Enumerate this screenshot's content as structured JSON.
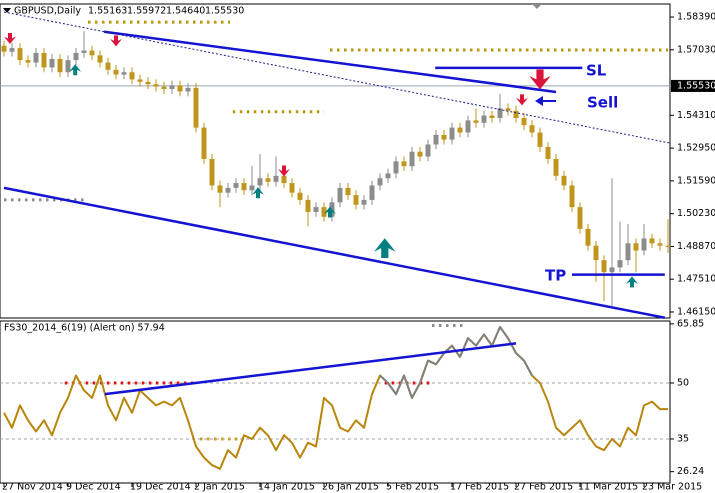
{
  "chart_data": [
    {
      "type": "candlestick",
      "header": {
        "symbol": "GBPUSD,Daily",
        "quote": [
          {
            "value": 1.55163,
            "label": "1.55163"
          },
          {
            "value": 1.55972,
            "label": "1.55972"
          },
          {
            "value": 1.5464,
            "label": "1.54640"
          },
          {
            "value": 1.5553,
            "label": "1.55530"
          }
        ]
      },
      "up_color": "#8c8c8c",
      "down_color": "#c0961c",
      "ylim": [
        1.459,
        1.5893
      ],
      "yticks": [
        {
          "value": 1.5839,
          "label": "1.58390"
        },
        {
          "value": 1.5703,
          "label": "1.57030"
        },
        {
          "value": 1.5431,
          "label": "1.54310"
        },
        {
          "value": 1.5295,
          "label": "1.52950"
        },
        {
          "value": 1.5159,
          "label": "1.51590"
        },
        {
          "value": 1.5023,
          "label": "1.50230"
        },
        {
          "value": 1.4887,
          "label": "1.48870"
        },
        {
          "value": 1.4751,
          "label": "1.47510"
        },
        {
          "value": 1.4615,
          "label": "1.46150"
        }
      ],
      "grid": false,
      "candles": [
        [
          1.572,
          1.574,
          1.5675,
          1.5695
        ],
        [
          1.5695,
          1.573,
          1.5675,
          1.571
        ],
        [
          1.571,
          1.573,
          1.564,
          1.566
        ],
        [
          1.566,
          1.568,
          1.563,
          1.565
        ],
        [
          1.565,
          1.571,
          1.563,
          1.569
        ],
        [
          1.569,
          1.571,
          1.561,
          1.563
        ],
        [
          1.563,
          1.5685,
          1.561,
          1.5665
        ],
        [
          1.5665,
          1.5685,
          1.559,
          1.561
        ],
        [
          1.561,
          1.568,
          1.559,
          1.566
        ],
        [
          1.566,
          1.571,
          1.564,
          1.569
        ],
        [
          1.569,
          1.578,
          1.567,
          1.57
        ],
        [
          1.57,
          1.572,
          1.566,
          1.568
        ],
        [
          1.568,
          1.57,
          1.563,
          1.565
        ],
        [
          1.565,
          1.567,
          1.56,
          1.562
        ],
        [
          1.562,
          1.564,
          1.558,
          1.56
        ],
        [
          1.56,
          1.563,
          1.558,
          1.561
        ],
        [
          1.561,
          1.563,
          1.556,
          1.558
        ],
        [
          1.558,
          1.56,
          1.555,
          1.557
        ],
        [
          1.557,
          1.559,
          1.554,
          1.556
        ],
        [
          1.556,
          1.558,
          1.553,
          1.555
        ],
        [
          1.555,
          1.557,
          1.552,
          1.554
        ],
        [
          1.554,
          1.5575,
          1.552,
          1.5555
        ],
        [
          1.5555,
          1.5575,
          1.551,
          1.553
        ],
        [
          1.553,
          1.5565,
          1.551,
          1.5545
        ],
        [
          1.5545,
          1.5565,
          1.536,
          1.538
        ],
        [
          1.538,
          1.54,
          1.523,
          1.525
        ],
        [
          1.525,
          1.527,
          1.512,
          1.514
        ],
        [
          1.514,
          1.516,
          1.505,
          1.511
        ],
        [
          1.511,
          1.515,
          1.509,
          1.513
        ],
        [
          1.513,
          1.517,
          1.511,
          1.515
        ],
        [
          1.515,
          1.517,
          1.51,
          1.512
        ],
        [
          1.512,
          1.522,
          1.51,
          1.514
        ],
        [
          1.514,
          1.527,
          1.512,
          1.517
        ],
        [
          1.517,
          1.519,
          1.5135,
          1.5155
        ],
        [
          1.5155,
          1.526,
          1.5135,
          1.518
        ],
        [
          1.518,
          1.52,
          1.513,
          1.515
        ],
        [
          1.515,
          1.517,
          1.509,
          1.511
        ],
        [
          1.511,
          1.513,
          1.506,
          1.508
        ],
        [
          1.508,
          1.51,
          1.497,
          1.503
        ],
        [
          1.503,
          1.507,
          1.501,
          1.505
        ],
        [
          1.505,
          1.507,
          1.499,
          1.501
        ],
        [
          1.501,
          1.509,
          1.499,
          1.507
        ],
        [
          1.507,
          1.515,
          1.505,
          1.513
        ],
        [
          1.513,
          1.515,
          1.508,
          1.51
        ],
        [
          1.51,
          1.512,
          1.504,
          1.506
        ],
        [
          1.506,
          1.51,
          1.504,
          1.508
        ],
        [
          1.508,
          1.516,
          1.506,
          1.514
        ],
        [
          1.514,
          1.519,
          1.512,
          1.517
        ],
        [
          1.517,
          1.521,
          1.515,
          1.519
        ],
        [
          1.519,
          1.526,
          1.517,
          1.524
        ],
        [
          1.524,
          1.526,
          1.52,
          1.522
        ],
        [
          1.522,
          1.53,
          1.52,
          1.528
        ],
        [
          1.528,
          1.53,
          1.524,
          1.526
        ],
        [
          1.526,
          1.533,
          1.524,
          1.531
        ],
        [
          1.531,
          1.537,
          1.529,
          1.535
        ],
        [
          1.535,
          1.537,
          1.531,
          1.533
        ],
        [
          1.533,
          1.54,
          1.531,
          1.538
        ],
        [
          1.538,
          1.54,
          1.534,
          1.536
        ],
        [
          1.536,
          1.543,
          1.534,
          1.541
        ],
        [
          1.541,
          1.546,
          1.538,
          1.54
        ],
        [
          1.54,
          1.545,
          1.538,
          1.543
        ],
        [
          1.543,
          1.545,
          1.54,
          1.542
        ],
        [
          1.542,
          1.552,
          1.54,
          1.546
        ],
        [
          1.546,
          1.548,
          1.543,
          1.545
        ],
        [
          1.545,
          1.547,
          1.54,
          1.542
        ],
        [
          1.542,
          1.544,
          1.537,
          1.539
        ],
        [
          1.539,
          1.541,
          1.534,
          1.536
        ],
        [
          1.536,
          1.538,
          1.528,
          1.53
        ],
        [
          1.53,
          1.532,
          1.523,
          1.525
        ],
        [
          1.525,
          1.527,
          1.516,
          1.518
        ],
        [
          1.518,
          1.52,
          1.512,
          1.514
        ],
        [
          1.514,
          1.516,
          1.503,
          1.505
        ],
        [
          1.505,
          1.507,
          1.494,
          1.496
        ],
        [
          1.496,
          1.498,
          1.487,
          1.489
        ],
        [
          1.489,
          1.491,
          1.474,
          1.483
        ],
        [
          1.483,
          1.485,
          1.466,
          1.478
        ],
        [
          1.478,
          1.517,
          1.464,
          1.48
        ],
        [
          1.48,
          1.499,
          1.478,
          1.483
        ],
        [
          1.483,
          1.498,
          1.481,
          1.49
        ],
        [
          1.49,
          1.492,
          1.478,
          1.487
        ],
        [
          1.487,
          1.498,
          1.485,
          1.492
        ],
        [
          1.492,
          1.494,
          1.488,
          1.49
        ],
        [
          1.49,
          1.492,
          1.487,
          1.489
        ],
        [
          1.489,
          1.5,
          1.486,
          1.4885
        ]
      ],
      "trendlines": [
        {
          "from": [
            12.5,
            1.5778
          ],
          "to": [
            69,
            1.5528
          ],
          "color": "#1414d2",
          "style": "solid"
        },
        {
          "from": [
            0,
            1.513
          ],
          "to": [
            82.6,
            1.4591
          ],
          "color": "#1414d2",
          "style": "solid"
        },
        {
          "from": [
            0,
            1.586
          ],
          "to": [
            83.25,
            1.5316
          ],
          "color": "#1e1e8c",
          "style": "dotted"
        },
        {
          "from": [
            53.9,
            1.5628
          ],
          "to": [
            72.3,
            1.5628
          ],
          "color": "#1414d2",
          "style": "solid"
        },
        {
          "from": [
            71,
            1.477
          ],
          "to": [
            82.6,
            1.477
          ],
          "color": "#1414d2",
          "style": "solid"
        }
      ],
      "dotted_levels": [
        {
          "from": 10.5,
          "to": 28.25,
          "value": 1.5818,
          "color": "#b8960c"
        },
        {
          "from": 40.75,
          "to": 83,
          "value": 1.5702,
          "color": "#b8960c"
        },
        {
          "from": 28.6,
          "to": 40,
          "value": 1.5446,
          "color": "#b8960c"
        },
        {
          "from": 0,
          "to": 10,
          "value": 1.508,
          "color": "#8c8c8c"
        }
      ],
      "arrows": [
        {
          "dir": "down",
          "at": [
            0.75,
            1.575
          ],
          "color": "#dc143c",
          "size": "small"
        },
        {
          "dir": "down",
          "at": [
            14,
            1.574
          ],
          "color": "#dc143c",
          "size": "small"
        },
        {
          "dir": "down",
          "at": [
            35,
            1.52
          ],
          "color": "#dc143c",
          "size": "small"
        },
        {
          "dir": "down",
          "at": [
            64.75,
            1.5495
          ],
          "color": "#dc143c",
          "size": "small"
        },
        {
          "dir": "down",
          "at": [
            67,
            1.558
          ],
          "color": "#dc143c",
          "size": "big"
        },
        {
          "dir": "up",
          "at": [
            8.9,
            1.562
          ],
          "color": "#008080",
          "size": "small"
        },
        {
          "dir": "up",
          "at": [
            31.75,
            1.511
          ],
          "color": "#008080",
          "size": "small"
        },
        {
          "dir": "up",
          "at": [
            40.75,
            1.503
          ],
          "color": "#008080",
          "size": "small"
        },
        {
          "dir": "up",
          "at": [
            47.6,
            1.488
          ],
          "color": "#008080",
          "size": "big"
        },
        {
          "dir": "up",
          "at": [
            78.5,
            1.474
          ],
          "color": "#008080",
          "size": "small"
        }
      ],
      "annotations": [
        "SL",
        "Sell",
        "TP"
      ]
    },
    {
      "type": "line",
      "title": "FS30_2014_6(19) (Alert on) 57.94",
      "color": "#b8860b",
      "highlight": {
        "from": 47,
        "to": 66,
        "color": "#808080"
      },
      "ylim": [
        23.2,
        66.34
      ],
      "yticks": [
        65.85,
        50,
        35,
        26.24
      ],
      "levels": [
        50,
        35
      ],
      "values": [
        42,
        38,
        44,
        40,
        37,
        40,
        36,
        42,
        46,
        52,
        48,
        46,
        52,
        44,
        40,
        46,
        42,
        48,
        46,
        44,
        45,
        44,
        46,
        40,
        33,
        30,
        28,
        27,
        32,
        30,
        36,
        35,
        38,
        36,
        32,
        36,
        34,
        30,
        34,
        33,
        46,
        44,
        38,
        37,
        40,
        38,
        47,
        52,
        50,
        47,
        52,
        46,
        50,
        56,
        55,
        58,
        60,
        57,
        62,
        60,
        63,
        60,
        65,
        62,
        58,
        56,
        52,
        50,
        45,
        38,
        36,
        38,
        40,
        36,
        33,
        32,
        35,
        33,
        38,
        36,
        44,
        45,
        43,
        43
      ],
      "trendlines": [
        {
          "from": [
            12.6,
            47
          ],
          "to": [
            64,
            60.6
          ],
          "color": "#1414d2",
          "style": "solid"
        }
      ],
      "dotted_levels": [
        {
          "from": 7.6,
          "to": 23.9,
          "value": 50,
          "color": "#e01010"
        },
        {
          "from": 47.6,
          "to": 53.25,
          "value": 50,
          "color": "#e01010"
        },
        {
          "from": 24.5,
          "to": 30,
          "value": 35,
          "color": "#c8a030"
        },
        {
          "from": 53.5,
          "to": 57.6,
          "value": 65.4,
          "color": "#8c8c8c"
        }
      ],
      "xticks": [
        {
          "value": 0,
          "label": "27 Nov 2014"
        },
        {
          "value": 8,
          "label": "9 Dec 2014"
        },
        {
          "value": 16,
          "label": "19 Dec 2014"
        },
        {
          "value": 24,
          "label": "2 Jan 2015"
        },
        {
          "value": 32,
          "label": "14 Jan 2015"
        },
        {
          "value": 40,
          "label": "26 Jan 2015"
        },
        {
          "value": 48,
          "label": "5 Feb 2015"
        },
        {
          "value": 56,
          "label": "17 Feb 2015"
        },
        {
          "value": 64,
          "label": "27 Feb 2015"
        },
        {
          "value": 72,
          "label": "11 Mar 2015"
        },
        {
          "value": 80,
          "label": "23 Mar 2015"
        }
      ]
    }
  ]
}
